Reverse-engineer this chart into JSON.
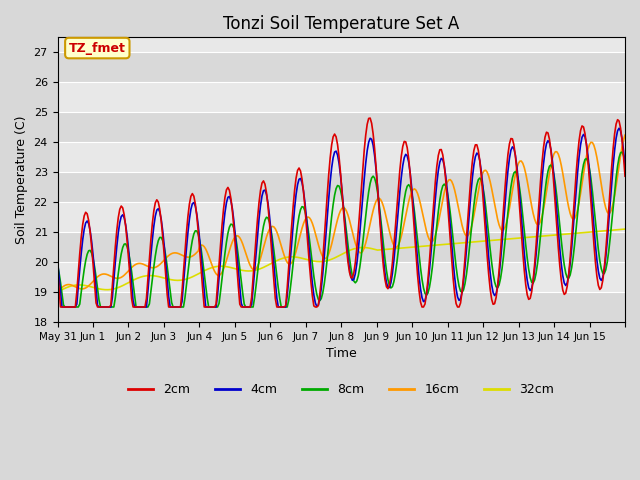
{
  "title": "Tonzi Soil Temperature Set A",
  "xlabel": "Time",
  "ylabel": "Soil Temperature (C)",
  "ylim": [
    18.0,
    27.5
  ],
  "yticks": [
    18.0,
    19.0,
    20.0,
    21.0,
    22.0,
    23.0,
    24.0,
    25.0,
    26.0,
    27.0
  ],
  "background_color": "#d8d8d8",
  "plot_bg_color": "#e8e8e8",
  "legend_label": "TZ_fmet",
  "legend_box_color": "#ffffcc",
  "legend_box_edge": "#cc9900",
  "series_colors": {
    "2cm": "#dd0000",
    "4cm": "#0000cc",
    "8cm": "#00aa00",
    "16cm": "#ff9900",
    "32cm": "#dddd00"
  },
  "n_days": 16,
  "n_per_day": 24,
  "x_tick_labels": [
    "May 31",
    "Jun 1",
    "Jun 2",
    "Jun 3",
    "Jun 4",
    "Jun 5",
    "Jun 6",
    "Jun 7",
    "Jun 8",
    "Jun 9",
    "Jun 10",
    "Jun 11",
    "Jun 12",
    "Jun 13",
    "Jun 14",
    "Jun 15"
  ]
}
